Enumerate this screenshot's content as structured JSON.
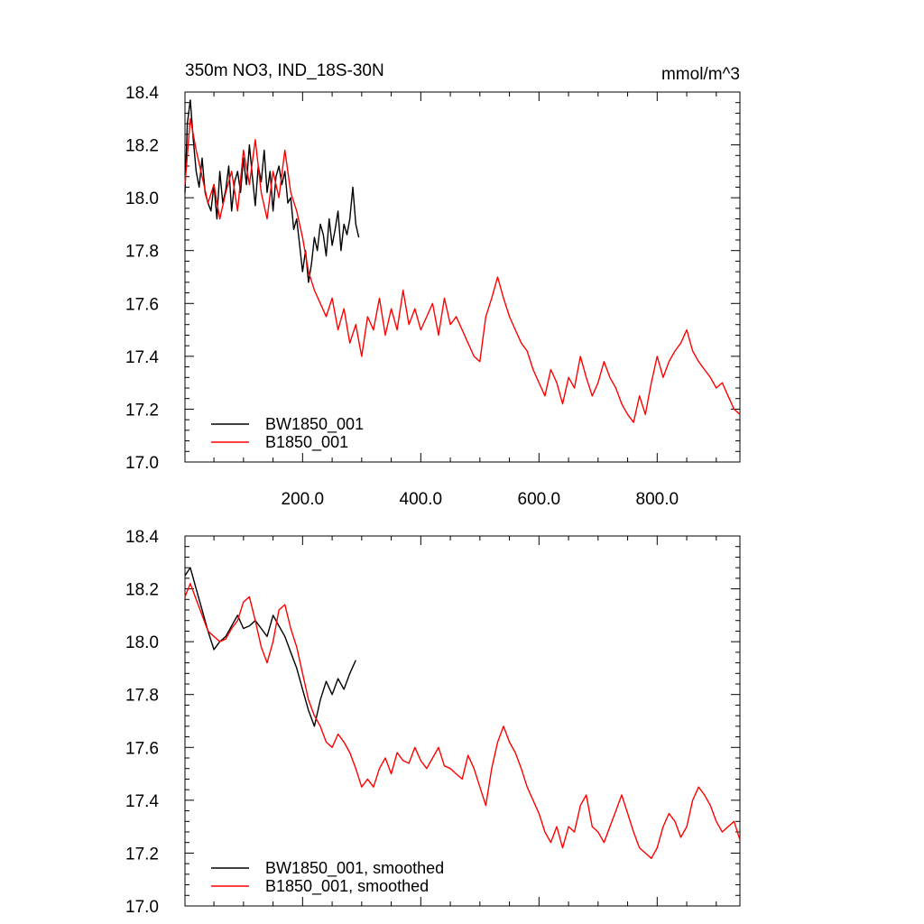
{
  "chart_data": [
    {
      "type": "line",
      "title": "350m NO3, IND_18S-30N",
      "units": "mmol/m^3",
      "xlim": [
        1,
        940
      ],
      "ylim": [
        17.0,
        18.4
      ],
      "yticks": [
        17.0,
        17.2,
        17.4,
        17.6,
        17.8,
        18.0,
        18.2,
        18.4
      ],
      "ytick_labels": [
        "17.0",
        "17.2",
        "17.4",
        "17.6",
        "17.8",
        "18.0",
        "18.2",
        "18.4"
      ],
      "xticks": [
        200,
        400,
        600,
        800
      ],
      "xtick_labels": [
        "200.0",
        "400.0",
        "600.0",
        "800.0"
      ],
      "legend_position": "bottom-left",
      "series": [
        {
          "name": "BW1850_001",
          "color": "#000000",
          "x": [
            1,
            5,
            10,
            15,
            20,
            25,
            30,
            35,
            40,
            45,
            50,
            55,
            60,
            65,
            70,
            75,
            80,
            85,
            90,
            95,
            100,
            105,
            110,
            115,
            120,
            125,
            130,
            135,
            140,
            145,
            150,
            155,
            160,
            165,
            170,
            175,
            180,
            185,
            190,
            195,
            200,
            205,
            210,
            215,
            220,
            225,
            230,
            235,
            240,
            245,
            250,
            255,
            260,
            265,
            270,
            275,
            280,
            285,
            290,
            295
          ],
          "y": [
            18.02,
            18.28,
            18.37,
            18.22,
            18.1,
            18.04,
            18.15,
            18.02,
            17.98,
            17.95,
            18.05,
            17.92,
            18.1,
            17.98,
            18.03,
            18.12,
            17.95,
            18.06,
            18.1,
            18.02,
            18.15,
            18.05,
            18.2,
            18.08,
            17.97,
            18.12,
            18.06,
            18.18,
            18.02,
            18.1,
            17.95,
            18.08,
            18.12,
            18.05,
            18.1,
            17.98,
            18.0,
            17.88,
            17.92,
            17.82,
            17.72,
            17.8,
            17.68,
            17.75,
            17.85,
            17.8,
            17.9,
            17.86,
            17.78,
            17.92,
            17.82,
            17.88,
            17.95,
            17.8,
            17.9,
            17.86,
            17.92,
            18.04,
            17.9,
            17.85
          ]
        },
        {
          "name": "B1850_001",
          "color": "#ff0000",
          "x": [
            1,
            10,
            20,
            30,
            40,
            50,
            60,
            70,
            80,
            90,
            100,
            110,
            120,
            130,
            140,
            150,
            160,
            170,
            180,
            190,
            200,
            210,
            220,
            230,
            240,
            250,
            260,
            270,
            280,
            290,
            300,
            310,
            320,
            330,
            340,
            350,
            360,
            370,
            380,
            390,
            400,
            410,
            420,
            430,
            440,
            450,
            460,
            470,
            480,
            490,
            500,
            510,
            520,
            530,
            540,
            550,
            560,
            570,
            580,
            590,
            600,
            610,
            620,
            630,
            640,
            650,
            660,
            670,
            680,
            690,
            700,
            710,
            720,
            730,
            740,
            750,
            760,
            770,
            780,
            790,
            800,
            810,
            820,
            830,
            840,
            850,
            860,
            870,
            880,
            890,
            900,
            910,
            920,
            930,
            940
          ],
          "y": [
            18.05,
            18.3,
            18.18,
            18.08,
            17.98,
            18.05,
            17.92,
            18.02,
            18.1,
            17.95,
            18.18,
            18.05,
            18.22,
            18.02,
            17.92,
            18.1,
            18.0,
            18.18,
            18.02,
            17.95,
            17.85,
            17.72,
            17.65,
            17.6,
            17.55,
            17.62,
            17.5,
            17.58,
            17.45,
            17.52,
            17.4,
            17.55,
            17.5,
            17.62,
            17.48,
            17.58,
            17.5,
            17.65,
            17.52,
            17.58,
            17.5,
            17.55,
            17.6,
            17.48,
            17.62,
            17.52,
            17.55,
            17.5,
            17.45,
            17.4,
            17.38,
            17.55,
            17.62,
            17.7,
            17.62,
            17.55,
            17.5,
            17.45,
            17.42,
            17.35,
            17.3,
            17.25,
            17.35,
            17.3,
            17.22,
            17.32,
            17.28,
            17.4,
            17.32,
            17.25,
            17.3,
            17.38,
            17.32,
            17.28,
            17.22,
            17.18,
            17.15,
            17.25,
            17.18,
            17.3,
            17.4,
            17.32,
            17.38,
            17.42,
            17.45,
            17.5,
            17.42,
            17.38,
            17.35,
            17.32,
            17.28,
            17.3,
            17.25,
            17.2,
            17.18
          ]
        }
      ]
    },
    {
      "type": "line",
      "xlim": [
        1,
        940
      ],
      "ylim": [
        17.0,
        18.4
      ],
      "yticks": [
        17.0,
        17.2,
        17.4,
        17.6,
        17.8,
        18.0,
        18.2,
        18.4
      ],
      "ytick_labels": [
        "17.0",
        "17.2",
        "17.4",
        "17.6",
        "17.8",
        "18.0",
        "18.2",
        "18.4"
      ],
      "xticks": [
        200,
        400,
        600,
        800
      ],
      "legend_position": "bottom-left",
      "series": [
        {
          "name": "BW1850_001, smoothed",
          "color": "#000000",
          "x": [
            1,
            10,
            20,
            30,
            40,
            50,
            60,
            70,
            80,
            90,
            100,
            110,
            120,
            130,
            140,
            150,
            160,
            170,
            180,
            190,
            200,
            210,
            220,
            230,
            240,
            250,
            260,
            270,
            280,
            290
          ],
          "y": [
            18.25,
            18.28,
            18.2,
            18.12,
            18.04,
            17.97,
            18.0,
            18.02,
            18.06,
            18.1,
            18.05,
            18.06,
            18.08,
            18.05,
            18.02,
            18.1,
            18.06,
            18.02,
            17.96,
            17.9,
            17.82,
            17.74,
            17.68,
            17.78,
            17.85,
            17.8,
            17.86,
            17.82,
            17.88,
            17.93
          ]
        },
        {
          "name": "B1850_001, smoothed",
          "color": "#ff0000",
          "x": [
            1,
            10,
            20,
            30,
            40,
            50,
            60,
            70,
            80,
            90,
            100,
            110,
            120,
            130,
            140,
            150,
            160,
            170,
            180,
            190,
            200,
            210,
            220,
            230,
            240,
            250,
            260,
            270,
            280,
            290,
            300,
            310,
            320,
            330,
            340,
            350,
            360,
            370,
            380,
            390,
            400,
            410,
            420,
            430,
            440,
            450,
            460,
            470,
            480,
            490,
            500,
            510,
            520,
            530,
            540,
            550,
            560,
            570,
            580,
            590,
            600,
            610,
            620,
            630,
            640,
            650,
            660,
            670,
            680,
            690,
            700,
            710,
            720,
            730,
            740,
            750,
            760,
            770,
            780,
            790,
            800,
            810,
            820,
            830,
            840,
            850,
            860,
            870,
            880,
            890,
            900,
            910,
            920,
            930,
            940
          ],
          "y": [
            18.17,
            18.22,
            18.16,
            18.1,
            18.04,
            18.02,
            18.0,
            18.01,
            18.05,
            18.08,
            18.15,
            18.17,
            18.08,
            17.98,
            17.92,
            18.0,
            18.12,
            18.14,
            18.05,
            17.98,
            17.88,
            17.78,
            17.72,
            17.68,
            17.62,
            17.6,
            17.65,
            17.62,
            17.58,
            17.52,
            17.45,
            17.48,
            17.45,
            17.52,
            17.56,
            17.5,
            17.58,
            17.55,
            17.54,
            17.6,
            17.55,
            17.52,
            17.56,
            17.6,
            17.53,
            17.52,
            17.5,
            17.48,
            17.57,
            17.52,
            17.45,
            17.38,
            17.52,
            17.62,
            17.68,
            17.62,
            17.58,
            17.52,
            17.45,
            17.4,
            17.35,
            17.28,
            17.24,
            17.3,
            17.22,
            17.3,
            17.28,
            17.38,
            17.42,
            17.3,
            17.28,
            17.24,
            17.3,
            17.36,
            17.42,
            17.35,
            17.28,
            17.22,
            17.2,
            17.18,
            17.22,
            17.3,
            17.35,
            17.32,
            17.26,
            17.3,
            17.4,
            17.45,
            17.42,
            17.38,
            17.32,
            17.28,
            17.3,
            17.32,
            17.25
          ]
        }
      ]
    }
  ]
}
